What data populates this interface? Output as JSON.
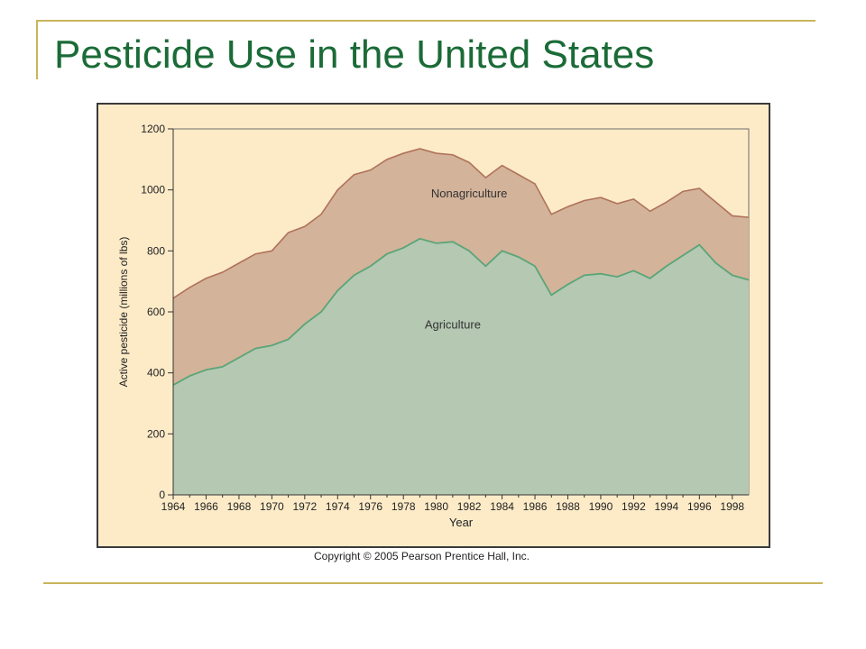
{
  "slide": {
    "title": "Pesticide Use in the United States",
    "copyright": "Copyright © 2005 Pearson Prentice Hall, Inc."
  },
  "colors": {
    "background": "#fdebc8",
    "agriculture_fill": "#b4c8b2",
    "agriculture_line": "#5aa577",
    "total_fill": "#d3b39a",
    "total_line": "#b0725a",
    "title": "#1b6b37",
    "accent_rule": "#c9b45a"
  },
  "chart_data": {
    "type": "area",
    "ylabel": "Active pesticide (millions of lbs)",
    "xlabel": "Year",
    "xlim": [
      1964,
      1999
    ],
    "ylim": [
      0,
      1200
    ],
    "yticks": [
      0,
      200,
      400,
      600,
      800,
      1000,
      1200
    ],
    "xticks": [
      1964,
      1966,
      1968,
      1970,
      1972,
      1974,
      1976,
      1978,
      1980,
      1982,
      1984,
      1986,
      1988,
      1990,
      1992,
      1994,
      1996,
      1998
    ],
    "x": [
      1964,
      1965,
      1966,
      1967,
      1968,
      1969,
      1970,
      1971,
      1972,
      1973,
      1974,
      1975,
      1976,
      1977,
      1978,
      1979,
      1980,
      1981,
      1982,
      1983,
      1984,
      1985,
      1986,
      1987,
      1988,
      1989,
      1990,
      1991,
      1992,
      1993,
      1994,
      1995,
      1996,
      1997,
      1998,
      1999
    ],
    "series": [
      {
        "name": "Agriculture",
        "stack": "bottom",
        "values": [
          360,
          390,
          410,
          420,
          450,
          480,
          490,
          510,
          560,
          600,
          670,
          720,
          750,
          790,
          810,
          840,
          825,
          830,
          800,
          750,
          800,
          780,
          750,
          655,
          690,
          720,
          725,
          715,
          735,
          710,
          750,
          785,
          820,
          760,
          720,
          705
        ]
      },
      {
        "name": "Nonagriculture",
        "stack": "top",
        "total_values": [
          645,
          680,
          710,
          730,
          760,
          790,
          800,
          860,
          880,
          920,
          1000,
          1050,
          1065,
          1100,
          1120,
          1135,
          1120,
          1115,
          1090,
          1040,
          1080,
          1050,
          1020,
          920,
          945,
          965,
          975,
          955,
          970,
          930,
          960,
          995,
          1005,
          960,
          915,
          910
        ]
      }
    ],
    "annotations": [
      {
        "text": "Nonagriculture",
        "x": 1982,
        "y": 975
      },
      {
        "text": "Agriculture",
        "x": 1981,
        "y": 545
      }
    ],
    "grid": false,
    "legend": "none"
  }
}
